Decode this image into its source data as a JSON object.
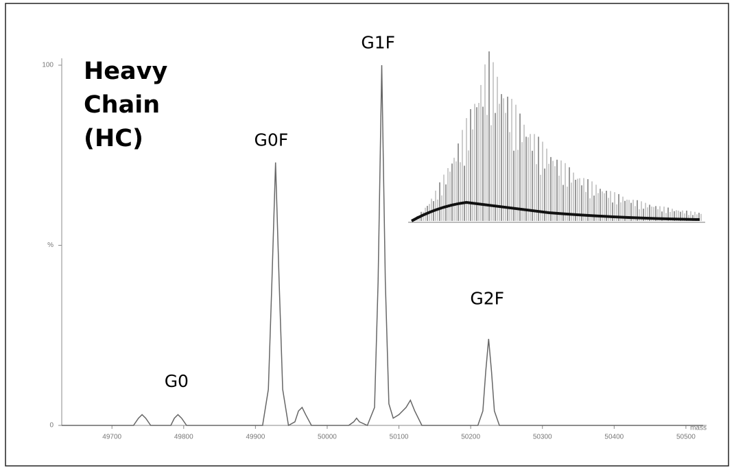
{
  "chart_data": {
    "type": "line",
    "title": "Heavy Chain (HC)",
    "x_label": "mass",
    "x": [
      49630,
      49730,
      49737,
      49742,
      49747,
      49754,
      49782,
      49787,
      49792,
      49797,
      49804,
      49910,
      49918,
      49923,
      49928,
      49933,
      49938,
      49946,
      49955,
      49960,
      49965,
      49970,
      49978,
      50030,
      50037,
      50041,
      50045,
      50056,
      50066,
      50071,
      50076,
      50081,
      50086,
      50092,
      50100,
      50110,
      50116,
      50122,
      50132,
      50210,
      50217,
      50221,
      50225,
      50229,
      50233,
      50240,
      50524
    ],
    "series": [
      {
        "name": "HC",
        "color": "#666666",
        "values": [
          0,
          0,
          2,
          3,
          2,
          0,
          0,
          2,
          3,
          2,
          0,
          0,
          10,
          40,
          73,
          40,
          10,
          0,
          1,
          4,
          5,
          3,
          0,
          0,
          1,
          2,
          1,
          0,
          5,
          40,
          100,
          40,
          6,
          2,
          3,
          5,
          7,
          4,
          0,
          0,
          4,
          15,
          24,
          15,
          4,
          0,
          0
        ]
      }
    ],
    "xlim": [
      49630,
      50524
    ],
    "ylim": [
      0,
      100
    ],
    "xticks": [
      49700,
      49800,
      49900,
      50000,
      50100,
      50200,
      50300,
      50400,
      50500
    ],
    "yticks": [
      0,
      {
        "value": 50,
        "label": "%"
      },
      100
    ],
    "annotations": [
      {
        "text": "G0",
        "x": 49790,
        "y": 12
      },
      {
        "text": "G0F",
        "x": 49922,
        "y": 79
      },
      {
        "text": "G1F",
        "x": 50071,
        "y": 106
      },
      {
        "text": "G2F",
        "x": 50223,
        "y": 35
      }
    ]
  }
}
